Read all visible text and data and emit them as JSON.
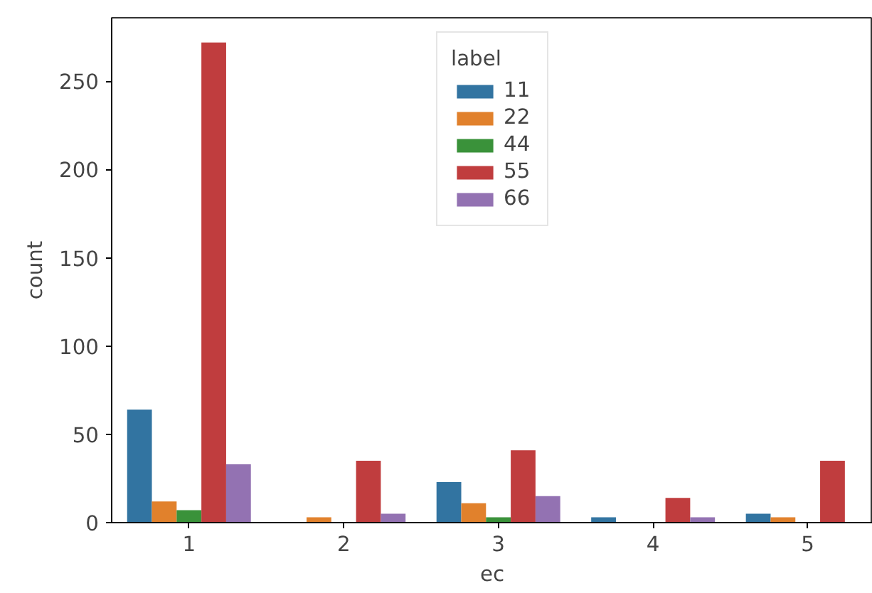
{
  "chart_data": {
    "type": "bar",
    "xlabel": "ec",
    "ylabel": "count",
    "legend_title": "label",
    "legend": "top",
    "categories": [
      "1",
      "2",
      "3",
      "4",
      "5"
    ],
    "series": [
      {
        "name": "11",
        "color": "#3274a1",
        "values": [
          64,
          0,
          23,
          3,
          5
        ]
      },
      {
        "name": "22",
        "color": "#e1812c",
        "values": [
          12,
          3,
          11,
          0,
          3
        ]
      },
      {
        "name": "44",
        "color": "#3a923a",
        "values": [
          7,
          0,
          3,
          0,
          0
        ]
      },
      {
        "name": "55",
        "color": "#c03d3e",
        "values": [
          272,
          35,
          41,
          14,
          35
        ]
      },
      {
        "name": "66",
        "color": "#9372b2",
        "values": [
          33,
          5,
          15,
          3,
          0
        ]
      }
    ],
    "ylim": [
      0,
      286
    ],
    "yticks": [
      0,
      50,
      100,
      150,
      200,
      250
    ],
    "grid": false
  }
}
